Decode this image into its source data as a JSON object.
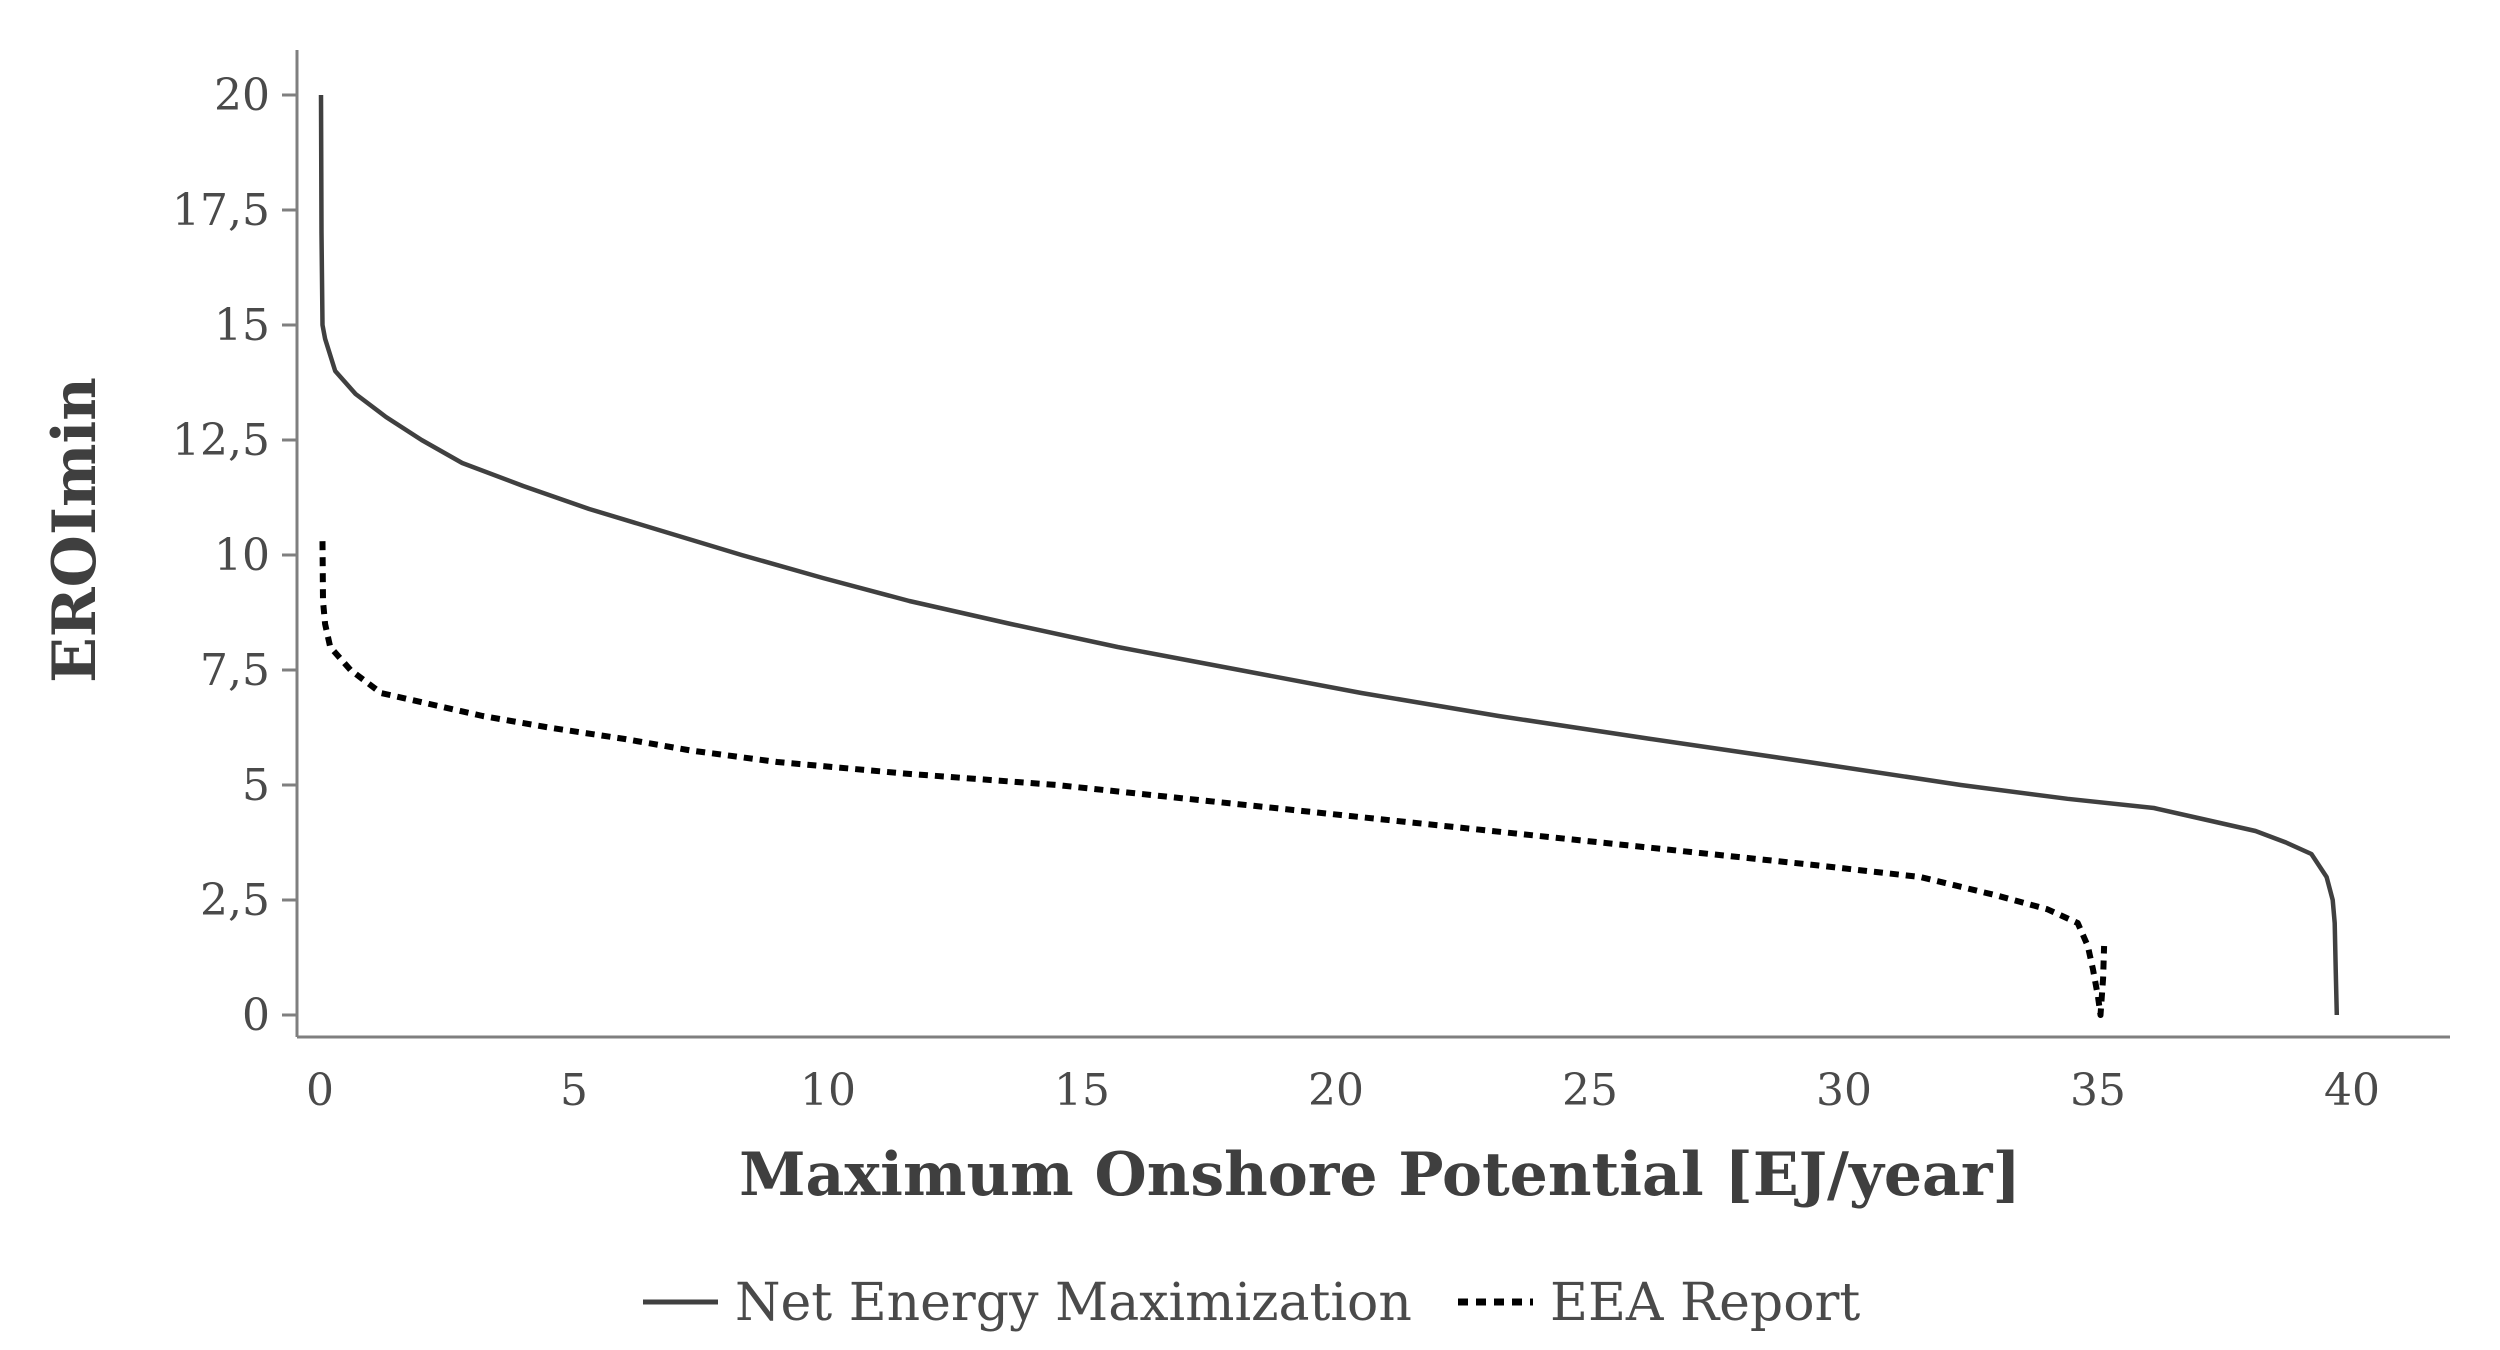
{
  "chart_data": {
    "type": "line",
    "title": "",
    "xlabel": "Maximum Onshore Potential [EJ/year]",
    "ylabel": "EROImin",
    "xlim": [
      0,
      40
    ],
    "ylim": [
      0,
      20
    ],
    "x_ticks": [
      0,
      5,
      10,
      15,
      20,
      25,
      30,
      35,
      40
    ],
    "x_tick_labels": [
      "0",
      "5",
      "10",
      "15",
      "20",
      "25",
      "30",
      "35",
      "40"
    ],
    "y_ticks": [
      0,
      2.5,
      5,
      7.5,
      10,
      12.5,
      15,
      17.5,
      20
    ],
    "y_tick_labels": [
      "0",
      "2,5",
      "5",
      "7,5",
      "10",
      "12,5",
      "15",
      "17,5",
      "20"
    ],
    "grid": false,
    "legend_position": "bottom-center",
    "series": [
      {
        "name": "Net Energy Maximization",
        "style": "solid",
        "color": "#404040",
        "x": [
          0.02,
          0.03,
          0.05,
          0.1,
          0.3,
          0.7,
          1.3,
          2.0,
          2.8,
          4.0,
          5.3,
          6.8,
          8.3,
          9.9,
          11.6,
          13.6,
          15.7,
          18.1,
          20.5,
          23.2,
          26.2,
          29.3,
          32.3,
          34.4,
          36.1,
          37.1,
          38.1,
          38.7,
          39.2,
          39.5,
          39.62,
          39.66,
          39.68,
          39.7
        ],
        "y": [
          20,
          17,
          15,
          14.7,
          14,
          13.5,
          13,
          12.5,
          12,
          11.5,
          11,
          10.5,
          10,
          9.5,
          9,
          8.5,
          8,
          7.5,
          7,
          6.5,
          6,
          5.5,
          5,
          4.7,
          4.5,
          4.25,
          4,
          3.75,
          3.5,
          3.0,
          2.5,
          2.0,
          1.0,
          0
        ]
      },
      {
        "name": "EEA Report",
        "style": "dotted",
        "color": "#000000",
        "x": [
          0.05,
          0.06,
          0.1,
          0.2,
          0.6,
          1.2,
          2.0,
          3.2,
          4.5,
          6.0,
          7.3,
          9.0,
          11.5,
          14.5,
          17.5,
          20.5,
          23.5,
          26.5,
          29.5,
          31.5,
          33.0,
          34.0,
          34.6,
          34.8,
          34.9,
          35.0,
          35.05,
          35.1,
          35.12
        ],
        "y": [
          10.3,
          9.0,
          8.5,
          8,
          7.5,
          7.0,
          6.8,
          6.5,
          6.25,
          6.0,
          5.75,
          5.5,
          5.25,
          5.0,
          4.65,
          4.3,
          3.95,
          3.6,
          3.25,
          3.0,
          2.6,
          2.3,
          2.0,
          1.5,
          1.0,
          0.4,
          0,
          0.8,
          1.5
        ]
      }
    ]
  }
}
